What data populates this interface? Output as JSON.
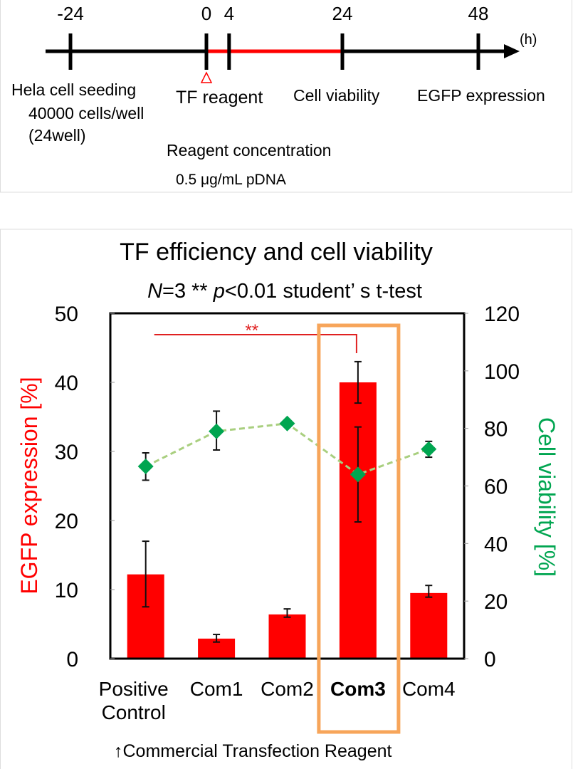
{
  "timeline": {
    "unit": "(h)",
    "ticks": [
      "-24",
      "0",
      "4",
      "24",
      "48"
    ],
    "tick_values": [
      -24,
      0,
      4,
      24,
      48
    ],
    "highlight_range": [
      0,
      24
    ],
    "labels": {
      "seeding_1": "Hela cell seeding",
      "seeding_2": "40000 cells/well",
      "seeding_3": "(24well)",
      "tf_reagent": "TF reagent",
      "cell_viability": "Cell viability",
      "egfp": "EGFP expression",
      "concentration_title": "Reagent concentration",
      "concentration_value": "0.5 μg/mL pDNA"
    }
  },
  "chart_data": {
    "type": "bar",
    "title": "TF efficiency and cell viability",
    "subtitle": {
      "n_label": "N",
      "n_value": "=3 ** ",
      "p_label": "p",
      "p_rest": "<0.01  student’ s t-test"
    },
    "categories": [
      "Positive\nControl",
      "Com1",
      "Com2",
      "Com3",
      "Com4"
    ],
    "category_lines": [
      [
        "Positive",
        "Control"
      ],
      [
        "Com1"
      ],
      [
        "Com2"
      ],
      [
        "Com3"
      ],
      [
        "Com4"
      ]
    ],
    "highlighted_category": "Com3",
    "ylabel": "EGFP expression [%]",
    "y2label": "Cell viability [%]",
    "ylim": [
      0,
      50
    ],
    "y2lim": [
      0,
      120
    ],
    "yticks": [
      "0",
      "10",
      "20",
      "30",
      "40",
      "50"
    ],
    "y2ticks": [
      "0",
      "20",
      "40",
      "60",
      "80",
      "100",
      "120"
    ],
    "series": [
      {
        "name": "EGFP expression",
        "type": "bar",
        "axis": "left",
        "color": "#ff0000",
        "values": [
          12.2,
          2.9,
          6.4,
          40.0,
          9.5
        ],
        "err_low": [
          7.5,
          2.4,
          6.0,
          37.0,
          8.9
        ],
        "err_high": [
          17.0,
          3.5,
          7.2,
          43.0,
          10.6
        ]
      },
      {
        "name": "Cell viability",
        "type": "line",
        "axis": "right",
        "color": "#00a550",
        "values": [
          66.8,
          79,
          81.7,
          64,
          72.8
        ],
        "err_low": [
          62,
          72.5,
          81.7,
          47.5,
          70
        ],
        "err_high": [
          71.5,
          86,
          81.7,
          80.5,
          75.5
        ]
      }
    ],
    "significance": {
      "label": "**",
      "between": [
        "Positive\nControl",
        "Com3"
      ]
    },
    "footnote": "↑Commercial Transfection Reagent"
  }
}
